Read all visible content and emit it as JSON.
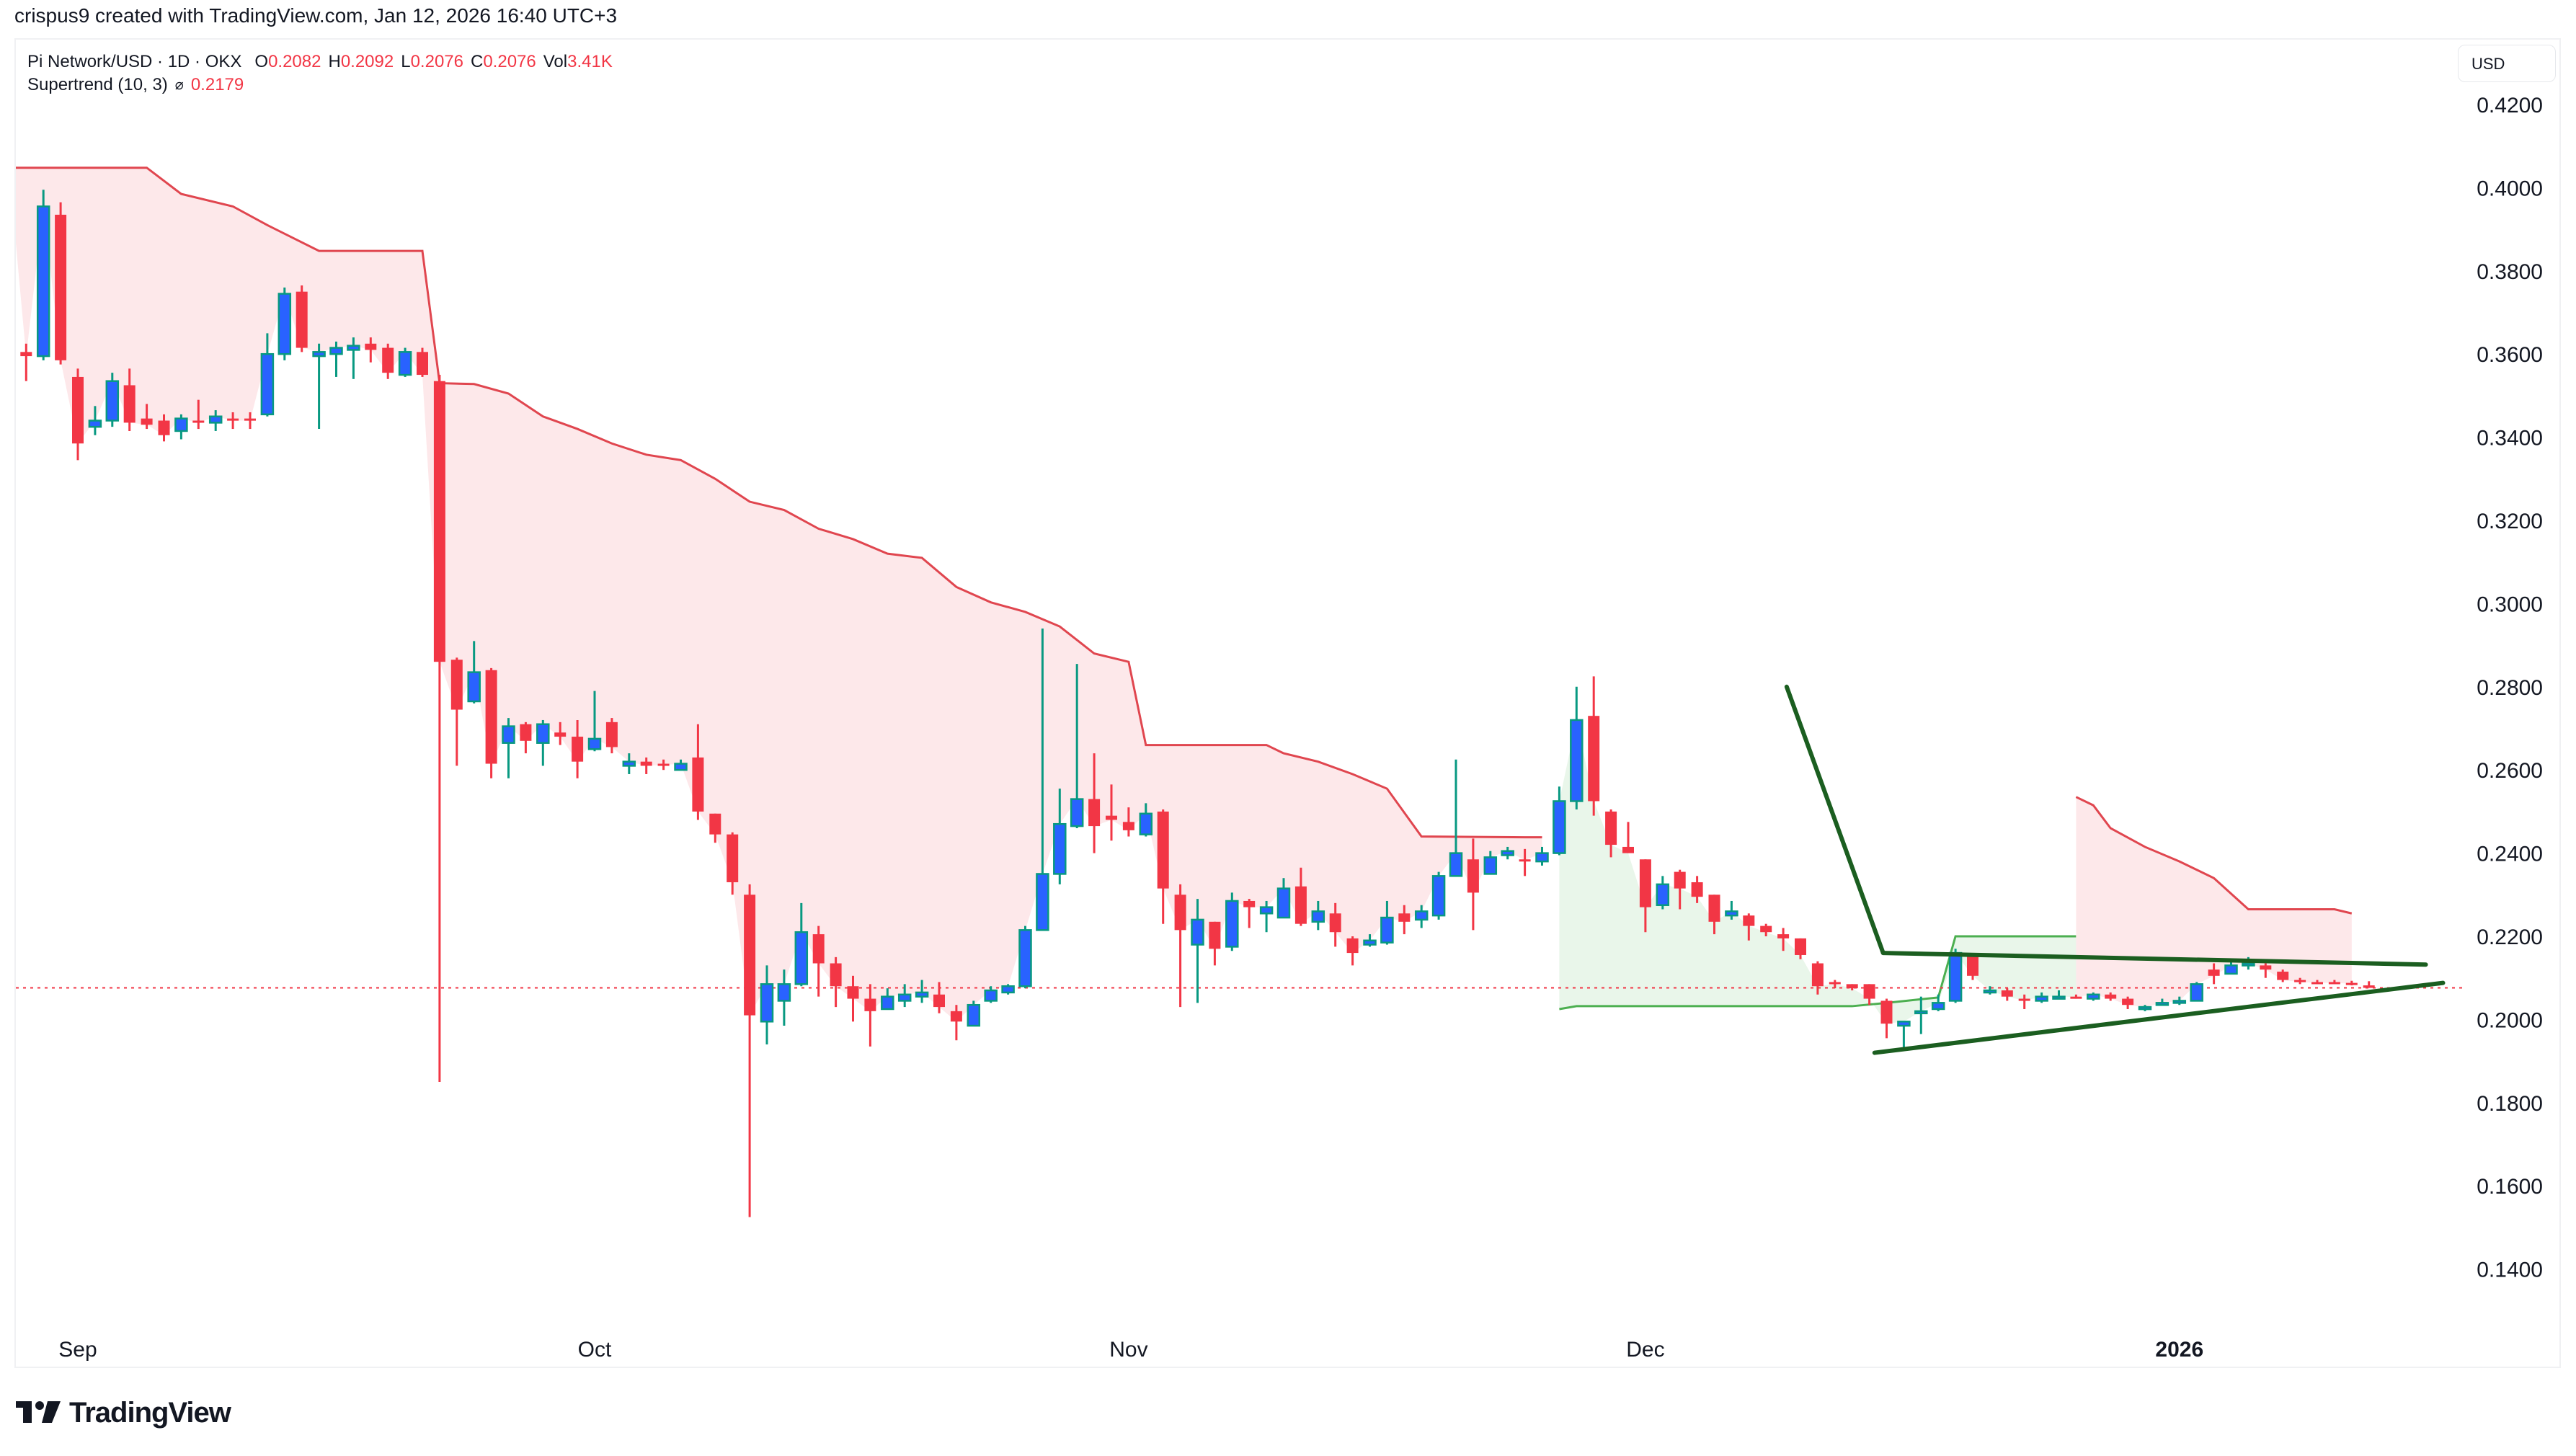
{
  "header": {
    "credit": "crispus9 created with TradingView.com, Jan 12, 2026 16:40 UTC+3"
  },
  "legend": {
    "symbol": "Pi Network/USD · 1D · OKX",
    "open_label": "O",
    "open": "0.2082",
    "high_label": "H",
    "high": "0.2092",
    "low_label": "L",
    "low": "0.2076",
    "close_label": "C",
    "close": "0.2076",
    "vol_label": "Vol",
    "vol": "3.41K",
    "indicator": "Supertrend (10, 3)",
    "indicator_icon": "⌀",
    "indicator_value": "0.2179"
  },
  "price_axis": {
    "currency": "USD"
  },
  "brand": {
    "name": "TradingView"
  },
  "colors": {
    "up": "#2962ff",
    "up_wick": "#089981",
    "down": "#f23645",
    "st_down_line": "#e0464f",
    "st_down_fill": "#fde8ea",
    "st_up_line": "#4caf50",
    "st_up_fill": "#e9f6ea",
    "trendline": "#1b5e20",
    "last_price": "#f23645"
  },
  "chart_data": {
    "type": "candlestick",
    "title": "Pi Network/USD · 1D · OKX",
    "xlabel": "",
    "ylabel": "USD",
    "ylim": [
      0.13,
      0.428
    ],
    "grid": false,
    "y_ticks": [
      "0.4200",
      "0.4000",
      "0.3800",
      "0.3600",
      "0.3400",
      "0.3200",
      "0.3000",
      "0.2800",
      "0.2600",
      "0.2400",
      "0.2200",
      "0.2000",
      "0.1800",
      "0.1600",
      "0.1400"
    ],
    "x_ticks": [
      {
        "label": "Sep",
        "day": 0
      },
      {
        "label": "Oct",
        "day": 30
      },
      {
        "label": "Nov",
        "day": 61
      },
      {
        "label": "Dec",
        "day": 91
      },
      {
        "label": "2026",
        "day": 122,
        "bold": true
      }
    ],
    "day_zero": "Sep 1, 2025",
    "last_price": 0.2076,
    "candles_columns": [
      "day",
      "open",
      "high",
      "low",
      "close"
    ],
    "candles": [
      [
        -3,
        0.3605,
        0.3625,
        0.3535,
        0.3595
      ],
      [
        -2,
        0.3595,
        0.3995,
        0.3585,
        0.3955
      ],
      [
        -1,
        0.3935,
        0.3965,
        0.3575,
        0.3585
      ],
      [
        0,
        0.3545,
        0.3565,
        0.3345,
        0.3385
      ],
      [
        1,
        0.3425,
        0.3475,
        0.3405,
        0.344
      ],
      [
        2,
        0.344,
        0.3555,
        0.3425,
        0.3535
      ],
      [
        3,
        0.3525,
        0.3565,
        0.3415,
        0.3435
      ],
      [
        4,
        0.3445,
        0.348,
        0.342,
        0.343
      ],
      [
        5,
        0.344,
        0.3455,
        0.339,
        0.3405
      ],
      [
        6,
        0.3415,
        0.3455,
        0.3395,
        0.3445
      ],
      [
        7,
        0.344,
        0.349,
        0.342,
        0.3435
      ],
      [
        8,
        0.3435,
        0.3465,
        0.3415,
        0.345
      ],
      [
        9,
        0.3445,
        0.346,
        0.342,
        0.344
      ],
      [
        10,
        0.3445,
        0.346,
        0.342,
        0.344
      ],
      [
        11,
        0.3455,
        0.365,
        0.345,
        0.36
      ],
      [
        12,
        0.36,
        0.376,
        0.3585,
        0.3745
      ],
      [
        13,
        0.375,
        0.3765,
        0.3605,
        0.3615
      ],
      [
        14,
        0.3595,
        0.3625,
        0.342,
        0.3605
      ],
      [
        15,
        0.36,
        0.363,
        0.3545,
        0.3615
      ],
      [
        16,
        0.361,
        0.364,
        0.354,
        0.362
      ],
      [
        17,
        0.3625,
        0.364,
        0.358,
        0.361
      ],
      [
        18,
        0.3615,
        0.3625,
        0.354,
        0.3555
      ],
      [
        19,
        0.355,
        0.3615,
        0.3545,
        0.3605
      ],
      [
        20,
        0.3605,
        0.3615,
        0.3545,
        0.355
      ],
      [
        21,
        0.3535,
        0.355,
        0.185,
        0.286
      ],
      [
        22,
        0.2865,
        0.287,
        0.261,
        0.2745
      ],
      [
        23,
        0.2765,
        0.291,
        0.276,
        0.2835
      ],
      [
        24,
        0.284,
        0.2845,
        0.258,
        0.2615
      ],
      [
        25,
        0.2665,
        0.2725,
        0.258,
        0.2705
      ],
      [
        26,
        0.271,
        0.2715,
        0.264,
        0.267
      ],
      [
        27,
        0.2665,
        0.272,
        0.261,
        0.271
      ],
      [
        28,
        0.269,
        0.2715,
        0.266,
        0.268
      ],
      [
        29,
        0.268,
        0.272,
        0.258,
        0.262
      ],
      [
        30,
        0.265,
        0.279,
        0.2645,
        0.2675
      ],
      [
        31,
        0.2715,
        0.2725,
        0.264,
        0.2655
      ],
      [
        32,
        0.261,
        0.264,
        0.259,
        0.262
      ],
      [
        33,
        0.262,
        0.263,
        0.259,
        0.261
      ],
      [
        34,
        0.2615,
        0.2625,
        0.26,
        0.2612
      ],
      [
        35,
        0.26,
        0.2625,
        0.26,
        0.2615
      ],
      [
        36,
        0.263,
        0.271,
        0.248,
        0.25
      ],
      [
        37,
        0.2495,
        0.2495,
        0.2425,
        0.2445
      ],
      [
        38,
        0.2445,
        0.245,
        0.23,
        0.233
      ],
      [
        39,
        0.23,
        0.2325,
        0.1525,
        0.201
      ],
      [
        40,
        0.1995,
        0.213,
        0.194,
        0.2085
      ],
      [
        41,
        0.2045,
        0.212,
        0.1985,
        0.2085
      ],
      [
        42,
        0.2085,
        0.228,
        0.208,
        0.221
      ],
      [
        43,
        0.2205,
        0.2225,
        0.2055,
        0.2135
      ],
      [
        44,
        0.2135,
        0.215,
        0.203,
        0.208
      ],
      [
        45,
        0.208,
        0.2105,
        0.1995,
        0.205
      ],
      [
        46,
        0.205,
        0.2085,
        0.1935,
        0.202
      ],
      [
        47,
        0.2025,
        0.2075,
        0.2025,
        0.2055
      ],
      [
        48,
        0.2045,
        0.2085,
        0.203,
        0.206
      ],
      [
        49,
        0.2055,
        0.2095,
        0.204,
        0.2065
      ],
      [
        50,
        0.206,
        0.209,
        0.2015,
        0.203
      ],
      [
        51,
        0.202,
        0.2035,
        0.195,
        0.1995
      ],
      [
        52,
        0.1985,
        0.2045,
        0.1985,
        0.2035
      ],
      [
        53,
        0.2045,
        0.208,
        0.204,
        0.207
      ],
      [
        54,
        0.2065,
        0.2085,
        0.206,
        0.208
      ],
      [
        55,
        0.208,
        0.2225,
        0.2075,
        0.2215
      ],
      [
        56,
        0.2215,
        0.294,
        0.2215,
        0.235
      ],
      [
        57,
        0.235,
        0.2555,
        0.2325,
        0.247
      ],
      [
        58,
        0.2465,
        0.2855,
        0.246,
        0.253
      ],
      [
        59,
        0.253,
        0.264,
        0.24,
        0.2465
      ],
      [
        60,
        0.249,
        0.2565,
        0.243,
        0.248
      ],
      [
        61,
        0.2475,
        0.251,
        0.244,
        0.2455
      ],
      [
        62,
        0.2445,
        0.252,
        0.244,
        0.2495
      ],
      [
        63,
        0.25,
        0.2505,
        0.223,
        0.2315
      ],
      [
        64,
        0.23,
        0.2325,
        0.203,
        0.2215
      ],
      [
        65,
        0.218,
        0.229,
        0.204,
        0.224
      ],
      [
        66,
        0.2235,
        0.2235,
        0.213,
        0.217
      ],
      [
        67,
        0.2175,
        0.2305,
        0.2165,
        0.2285
      ],
      [
        68,
        0.2285,
        0.229,
        0.222,
        0.227
      ],
      [
        69,
        0.2255,
        0.2285,
        0.221,
        0.227
      ],
      [
        70,
        0.2245,
        0.234,
        0.2245,
        0.2315
      ],
      [
        71,
        0.232,
        0.2365,
        0.2225,
        0.223
      ],
      [
        72,
        0.2235,
        0.2285,
        0.2215,
        0.226
      ],
      [
        73,
        0.2255,
        0.228,
        0.2175,
        0.221
      ],
      [
        74,
        0.2195,
        0.22,
        0.213,
        0.216
      ],
      [
        75,
        0.218,
        0.2205,
        0.2175,
        0.219
      ],
      [
        76,
        0.2185,
        0.2285,
        0.218,
        0.2245
      ],
      [
        77,
        0.2255,
        0.2275,
        0.2205,
        0.2235
      ],
      [
        78,
        0.224,
        0.2275,
        0.222,
        0.226
      ],
      [
        79,
        0.225,
        0.2355,
        0.224,
        0.2345
      ],
      [
        80,
        0.2345,
        0.2625,
        0.2345,
        0.24
      ],
      [
        81,
        0.2385,
        0.2435,
        0.2215,
        0.2305
      ],
      [
        82,
        0.235,
        0.2405,
        0.235,
        0.239
      ],
      [
        83,
        0.2395,
        0.2415,
        0.2385,
        0.2405
      ],
      [
        84,
        0.2385,
        0.241,
        0.2345,
        0.2383
      ],
      [
        85,
        0.238,
        0.2415,
        0.237,
        0.24
      ],
      [
        86,
        0.24,
        0.256,
        0.2395,
        0.2525
      ],
      [
        87,
        0.2525,
        0.28,
        0.2505,
        0.272
      ],
      [
        88,
        0.273,
        0.2825,
        0.249,
        0.2525
      ],
      [
        89,
        0.25,
        0.2505,
        0.239,
        0.242
      ],
      [
        90,
        0.2415,
        0.2475,
        0.24,
        0.24
      ],
      [
        91,
        0.2385,
        0.2385,
        0.221,
        0.227
      ],
      [
        92,
        0.2275,
        0.2345,
        0.2265,
        0.2325
      ],
      [
        93,
        0.2355,
        0.236,
        0.2265,
        0.2315
      ],
      [
        94,
        0.233,
        0.2345,
        0.228,
        0.2295
      ],
      [
        95,
        0.23,
        0.23,
        0.2205,
        0.2235
      ],
      [
        96,
        0.225,
        0.2285,
        0.224,
        0.226
      ],
      [
        97,
        0.225,
        0.2255,
        0.219,
        0.2225
      ],
      [
        98,
        0.2225,
        0.223,
        0.22,
        0.221
      ],
      [
        99,
        0.2205,
        0.222,
        0.2165,
        0.2195
      ],
      [
        100,
        0.2195,
        0.2195,
        0.2145,
        0.2155
      ],
      [
        101,
        0.2135,
        0.214,
        0.206,
        0.208
      ],
      [
        102,
        0.209,
        0.2095,
        0.2075,
        0.2085
      ],
      [
        103,
        0.2085,
        0.2085,
        0.207,
        0.2075
      ],
      [
        104,
        0.2085,
        0.2085,
        0.2035,
        0.205
      ],
      [
        105,
        0.2045,
        0.205,
        0.1955,
        0.199
      ],
      [
        106,
        0.1985,
        0.1995,
        0.193,
        0.1995
      ],
      [
        107,
        0.202,
        0.2055,
        0.1965,
        0.202
      ],
      [
        108,
        0.2025,
        0.206,
        0.202,
        0.204
      ],
      [
        109,
        0.2045,
        0.217,
        0.204,
        0.216
      ],
      [
        110,
        0.2155,
        0.2155,
        0.2095,
        0.2105
      ],
      [
        111,
        0.2065,
        0.208,
        0.206,
        0.207
      ],
      [
        112,
        0.207,
        0.2075,
        0.2045,
        0.2055
      ],
      [
        113,
        0.205,
        0.206,
        0.2025,
        0.2045
      ],
      [
        114,
        0.2045,
        0.2065,
        0.204,
        0.2055
      ],
      [
        115,
        0.205,
        0.207,
        0.205,
        0.2055
      ],
      [
        116,
        0.2055,
        0.206,
        0.205,
        0.2054
      ],
      [
        117,
        0.205,
        0.2065,
        0.2045,
        0.206
      ],
      [
        118,
        0.206,
        0.2065,
        0.2045,
        0.205
      ],
      [
        119,
        0.205,
        0.2055,
        0.2025,
        0.2035
      ],
      [
        120,
        0.2025,
        0.2035,
        0.202,
        0.203
      ],
      [
        121,
        0.2035,
        0.205,
        0.2035,
        0.204
      ],
      [
        122,
        0.204,
        0.2055,
        0.2035,
        0.2045
      ],
      [
        123,
        0.2045,
        0.209,
        0.2045,
        0.2085
      ],
      [
        124,
        0.212,
        0.2135,
        0.2085,
        0.2105
      ],
      [
        125,
        0.211,
        0.214,
        0.211,
        0.213
      ],
      [
        126,
        0.213,
        0.215,
        0.212,
        0.2135
      ],
      [
        127,
        0.213,
        0.2135,
        0.21,
        0.212
      ],
      [
        128,
        0.2115,
        0.212,
        0.209,
        0.2095
      ],
      [
        129,
        0.2095,
        0.21,
        0.2085,
        0.209
      ],
      [
        130,
        0.209,
        0.2095,
        0.2085,
        0.2088
      ],
      [
        131,
        0.209,
        0.2095,
        0.2085,
        0.2088
      ],
      [
        132,
        0.2088,
        0.2093,
        0.2082,
        0.2086
      ],
      [
        133,
        0.2082,
        0.2092,
        0.2076,
        0.2076
      ]
    ],
    "supertrend": {
      "params": "(10, 3)",
      "current": 0.2179,
      "segments": [
        {
          "trend": "down",
          "points": [
            [
              -4,
              0.4048
            ],
            [
              4,
              0.4048
            ],
            [
              6,
              0.3985
            ],
            [
              9,
              0.3955
            ],
            [
              11,
              0.391
            ],
            [
              14,
              0.3848
            ],
            [
              20,
              0.3848
            ],
            [
              21,
              0.353
            ],
            [
              23,
              0.3528
            ],
            [
              25,
              0.3505
            ],
            [
              27,
              0.345
            ],
            [
              29,
              0.342
            ],
            [
              31,
              0.3385
            ],
            [
              33,
              0.3358
            ],
            [
              35,
              0.3345
            ],
            [
              37,
              0.33
            ],
            [
              39,
              0.3245
            ],
            [
              41,
              0.3225
            ],
            [
              43,
              0.318
            ],
            [
              45,
              0.3155
            ],
            [
              47,
              0.312
            ],
            [
              49,
              0.311
            ],
            [
              51,
              0.304
            ],
            [
              53,
              0.3003
            ],
            [
              55,
              0.298
            ],
            [
              57,
              0.2945
            ],
            [
              59,
              0.288
            ],
            [
              61,
              0.286
            ],
            [
              62,
              0.266
            ],
            [
              69,
              0.266
            ],
            [
              70,
              0.264
            ],
            [
              72,
              0.262
            ],
            [
              74,
              0.259
            ],
            [
              76,
              0.2555
            ],
            [
              78,
              0.244
            ],
            [
              84,
              0.2438
            ],
            [
              85,
              0.2438
            ]
          ]
        },
        {
          "trend": "up",
          "points": [
            [
              86,
              0.2025
            ],
            [
              87,
              0.2032
            ],
            [
              103,
              0.2032
            ],
            [
              105,
              0.204
            ],
            [
              108,
              0.2053
            ],
            [
              109,
              0.22
            ],
            [
              114,
              0.22
            ],
            [
              116,
              0.22
            ]
          ]
        },
        {
          "trend": "down",
          "points": [
            [
              116,
              0.2535
            ],
            [
              117,
              0.2515
            ],
            [
              118,
              0.246
            ],
            [
              120,
              0.2415
            ],
            [
              122,
              0.238
            ],
            [
              124,
              0.234
            ],
            [
              126,
              0.2265
            ],
            [
              131,
              0.2265
            ],
            [
              132,
              0.2255
            ],
            [
              134,
              0.2235
            ],
            [
              136,
              0.221
            ],
            [
              138,
              0.2195
            ],
            [
              140,
              0.2185
            ],
            [
              150,
              0.2185
            ]
          ]
        }
      ],
      "note": "down segments plotted above price (red), up segments below (green)"
    },
    "trendlines": [
      {
        "name": "decline-line",
        "from": [
          99.2,
          0.28
        ],
        "to": [
          104.8,
          0.216
        ]
      },
      {
        "name": "upper-triangle",
        "from": [
          104.8,
          0.216
        ],
        "to": [
          136.3,
          0.2132
        ]
      },
      {
        "name": "lower-triangle",
        "from": [
          104.3,
          0.192
        ],
        "to": [
          137.3,
          0.2088
        ]
      }
    ]
  }
}
